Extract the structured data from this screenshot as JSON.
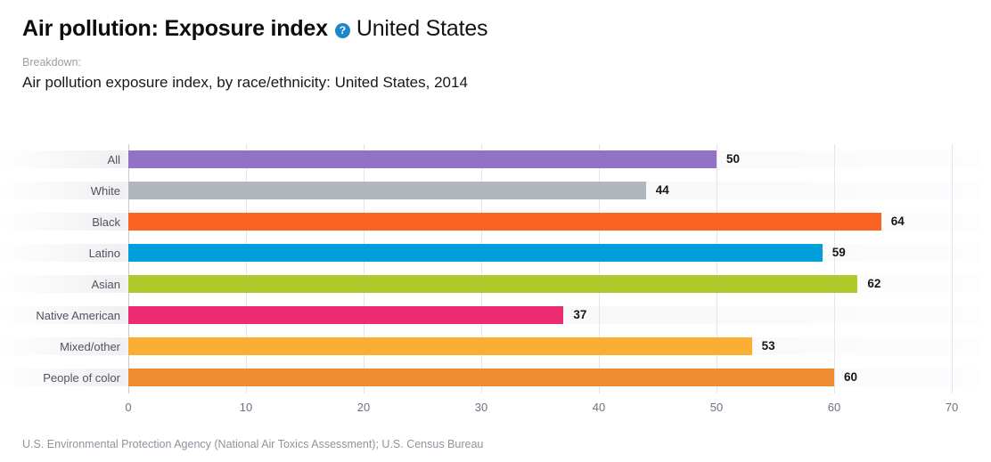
{
  "header": {
    "title": "Air pollution: Exposure index",
    "help_icon_symbol": "?",
    "region": "United States",
    "breakdown_label": "Breakdown:",
    "subtitle": "Air pollution exposure index, by race/ethnicity: United States, 2014"
  },
  "chart_data": {
    "type": "bar",
    "orientation": "horizontal",
    "title": "Air pollution exposure index, by race/ethnicity: United States, 2014",
    "categories": [
      "All",
      "White",
      "Black",
      "Latino",
      "Asian",
      "Native American",
      "Mixed/other",
      "People of color"
    ],
    "values": [
      50,
      44,
      64,
      59,
      62,
      37,
      53,
      60
    ],
    "bar_colors": [
      "#9372c6",
      "#b1b6bc",
      "#fb6322",
      "#009edb",
      "#b0ca2b",
      "#ed2b72",
      "#f9b032",
      "#ef8c33"
    ],
    "xlabel": "",
    "ylabel": "",
    "xlim": [
      0,
      70
    ],
    "x_ticks": [
      0,
      10,
      20,
      30,
      40,
      50,
      60,
      70
    ],
    "grid": true,
    "legend": false,
    "value_labels": true
  },
  "footer": {
    "source": "U.S. Environmental Protection Agency (National Air Toxics Assessment); U.S. Census Bureau"
  },
  "colors": {
    "help_icon_bg": "#1a87c9",
    "axis_line": "#c6cad0",
    "gridline": "#e3e5e8",
    "row_band": "#f5f5f7"
  }
}
